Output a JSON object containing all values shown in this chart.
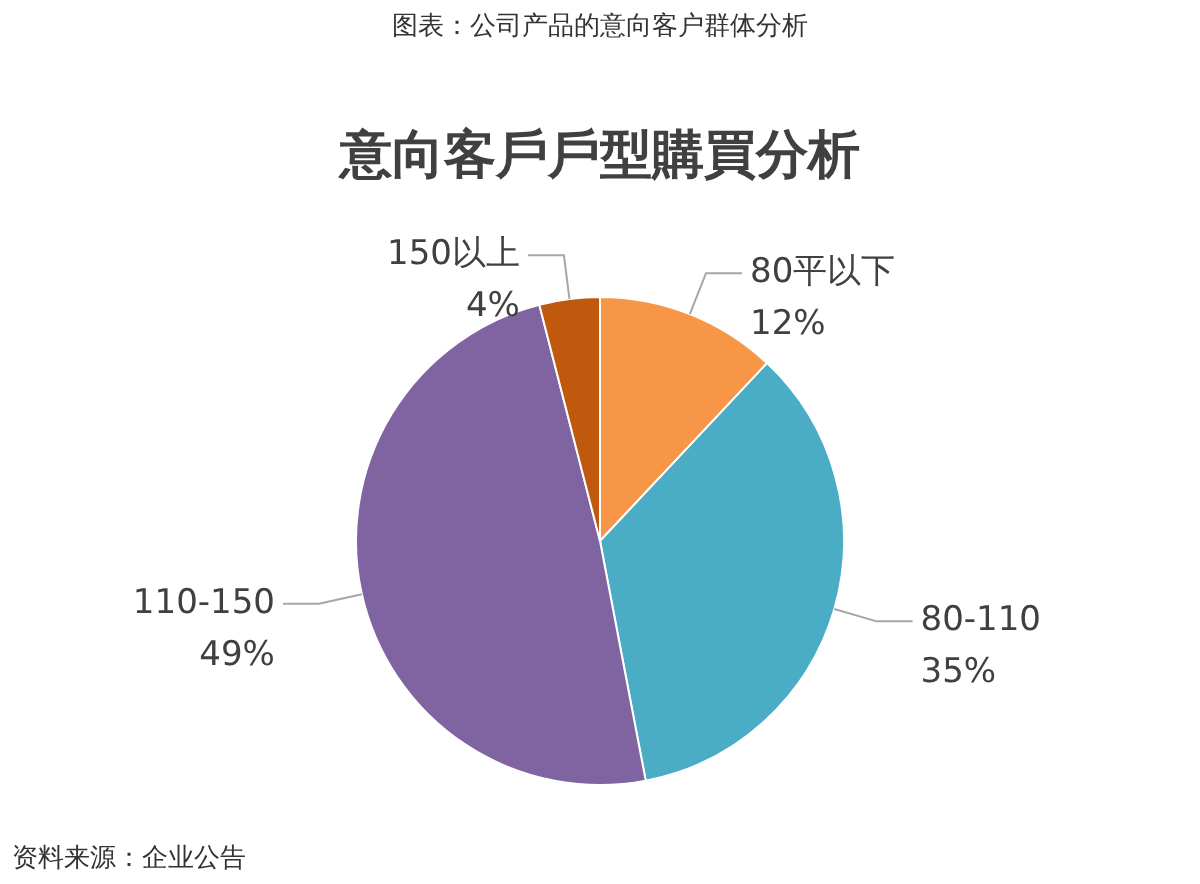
{
  "chart_data": {
    "type": "pie",
    "title": "图表：公司产品的意向客户群体分析",
    "subtitle": "意向客戶戶型購買分析",
    "categories": [
      "80平以下",
      "80-110",
      "110-150",
      "150以上"
    ],
    "values": [
      12,
      35,
      49,
      4
    ],
    "value_labels": [
      "12%",
      "35%",
      "49%",
      "4%"
    ],
    "colors": [
      "#f79646",
      "#4bacc6",
      "#8064a2",
      "#c0580e"
    ],
    "legend": false,
    "annotations": [
      "资料来源：企业公告"
    ]
  }
}
